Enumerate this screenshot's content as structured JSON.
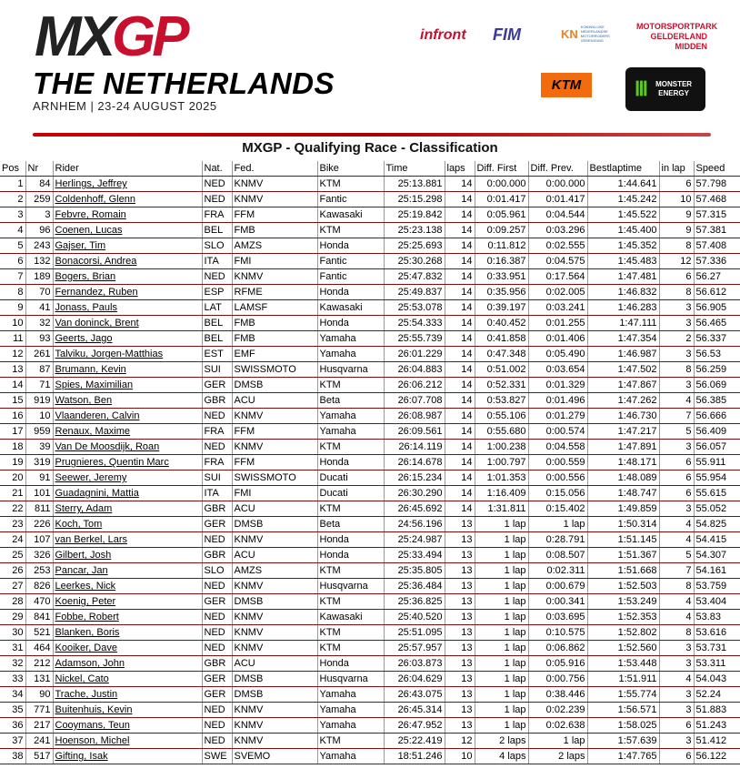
{
  "header": {
    "logo": "MXGP",
    "country": "THE NETHERLANDS",
    "dates": "ARNHEM | 23-24 AUGUST 2025",
    "sponsors": {
      "infront": "infront",
      "fim": "FIM",
      "knmv": "KN",
      "knmv_text": "KONINKLIJKE NEDERLANDSE MOTORRIJDERS VERENIGING",
      "park": "MOTORSPORTPARK GELDERLAND MIDDEN",
      "ktm": "KTM",
      "monster": "MONSTER ENERGY"
    }
  },
  "title": "MXGP - Qualifying Race - Classification",
  "columns": [
    "Pos",
    "Nr",
    "Rider",
    "Nat.",
    "Fed.",
    "Bike",
    "Time",
    "laps",
    "Diff. First",
    "Diff. Prev.",
    "Bestlaptime",
    "in lap",
    "Speed"
  ],
  "rows": [
    [
      "1",
      "84",
      "Herlings, Jeffrey",
      "NED",
      "KNMV",
      "KTM",
      "25:13.881",
      "14",
      "0:00.000",
      "0:00.000",
      "1:44.641",
      "6",
      "57.798"
    ],
    [
      "2",
      "259",
      "Coldenhoff, Glenn",
      "NED",
      "KNMV",
      "Fantic",
      "25:15.298",
      "14",
      "0:01.417",
      "0:01.417",
      "1:45.242",
      "10",
      "57.468"
    ],
    [
      "3",
      "3",
      "Febvre, Romain",
      "FRA",
      "FFM",
      "Kawasaki",
      "25:19.842",
      "14",
      "0:05.961",
      "0:04.544",
      "1:45.522",
      "9",
      "57.315"
    ],
    [
      "4",
      "96",
      "Coenen, Lucas",
      "BEL",
      "FMB",
      "KTM",
      "25:23.138",
      "14",
      "0:09.257",
      "0:03.296",
      "1:45.400",
      "9",
      "57.381"
    ],
    [
      "5",
      "243",
      "Gajser, Tim",
      "SLO",
      "AMZS",
      "Honda",
      "25:25.693",
      "14",
      "0:11.812",
      "0:02.555",
      "1:45.352",
      "8",
      "57.408"
    ],
    [
      "6",
      "132",
      "Bonacorsi, Andrea",
      "ITA",
      "FMI",
      "Fantic",
      "25:30.268",
      "14",
      "0:16.387",
      "0:04.575",
      "1:45.483",
      "12",
      "57.336"
    ],
    [
      "7",
      "189",
      "Bogers, Brian",
      "NED",
      "KNMV",
      "Fantic",
      "25:47.832",
      "14",
      "0:33.951",
      "0:17.564",
      "1:47.481",
      "6",
      "56.27"
    ],
    [
      "8",
      "70",
      "Fernandez, Ruben",
      "ESP",
      "RFME",
      "Honda",
      "25:49.837",
      "14",
      "0:35.956",
      "0:02.005",
      "1:46.832",
      "8",
      "56.612"
    ],
    [
      "9",
      "41",
      "Jonass, Pauls",
      "LAT",
      "LAMSF",
      "Kawasaki",
      "25:53.078",
      "14",
      "0:39.197",
      "0:03.241",
      "1:46.283",
      "3",
      "56.905"
    ],
    [
      "10",
      "32",
      "Van doninck, Brent",
      "BEL",
      "FMB",
      "Honda",
      "25:54.333",
      "14",
      "0:40.452",
      "0:01.255",
      "1:47.111",
      "3",
      "56.465"
    ],
    [
      "11",
      "93",
      "Geerts, Jago",
      "BEL",
      "FMB",
      "Yamaha",
      "25:55.739",
      "14",
      "0:41.858",
      "0:01.406",
      "1:47.354",
      "2",
      "56.337"
    ],
    [
      "12",
      "261",
      "Talviku, Jorgen-Matthias",
      "EST",
      "EMF",
      "Yamaha",
      "26:01.229",
      "14",
      "0:47.348",
      "0:05.490",
      "1:46.987",
      "3",
      "56.53"
    ],
    [
      "13",
      "87",
      "Brumann, Kevin",
      "SUI",
      "SWISSMOTO",
      "Husqvarna",
      "26:04.883",
      "14",
      "0:51.002",
      "0:03.654",
      "1:47.502",
      "8",
      "56.259"
    ],
    [
      "14",
      "71",
      "Spies, Maximilian",
      "GER",
      "DMSB",
      "KTM",
      "26:06.212",
      "14",
      "0:52.331",
      "0:01.329",
      "1:47.867",
      "3",
      "56.069"
    ],
    [
      "15",
      "919",
      "Watson, Ben",
      "GBR",
      "ACU",
      "Beta",
      "26:07.708",
      "14",
      "0:53.827",
      "0:01.496",
      "1:47.262",
      "4",
      "56.385"
    ],
    [
      "16",
      "10",
      "Vlaanderen, Calvin",
      "NED",
      "KNMV",
      "Yamaha",
      "26:08.987",
      "14",
      "0:55.106",
      "0:01.279",
      "1:46.730",
      "7",
      "56.666"
    ],
    [
      "17",
      "959",
      "Renaux, Maxime",
      "FRA",
      "FFM",
      "Yamaha",
      "26:09.561",
      "14",
      "0:55.680",
      "0:00.574",
      "1:47.217",
      "5",
      "56.409"
    ],
    [
      "18",
      "39",
      "Van De Moosdijk, Roan",
      "NED",
      "KNMV",
      "KTM",
      "26:14.119",
      "14",
      "1:00.238",
      "0:04.558",
      "1:47.891",
      "3",
      "56.057"
    ],
    [
      "19",
      "319",
      "Prugnieres, Quentin Marc",
      "FRA",
      "FFM",
      "Honda",
      "26:14.678",
      "14",
      "1:00.797",
      "0:00.559",
      "1:48.171",
      "6",
      "55.911"
    ],
    [
      "20",
      "91",
      "Seewer, Jeremy",
      "SUI",
      "SWISSMOTO",
      "Ducati",
      "26:15.234",
      "14",
      "1:01.353",
      "0:00.556",
      "1:48.089",
      "6",
      "55.954"
    ],
    [
      "21",
      "101",
      "Guadagnini, Mattia",
      "ITA",
      "FMI",
      "Ducati",
      "26:30.290",
      "14",
      "1:16.409",
      "0:15.056",
      "1:48.747",
      "6",
      "55.615"
    ],
    [
      "22",
      "811",
      "Sterry, Adam",
      "GBR",
      "ACU",
      "KTM",
      "26:45.692",
      "14",
      "1:31.811",
      "0:15.402",
      "1:49.859",
      "3",
      "55.052"
    ],
    [
      "23",
      "226",
      "Koch, Tom",
      "GER",
      "DMSB",
      "Beta",
      "24:56.196",
      "13",
      "1 lap",
      "1 lap",
      "1:50.314",
      "4",
      "54.825"
    ],
    [
      "24",
      "107",
      "van Berkel, Lars",
      "NED",
      "KNMV",
      "Honda",
      "25:24.987",
      "13",
      "1 lap",
      "0:28.791",
      "1:51.145",
      "4",
      "54.415"
    ],
    [
      "25",
      "326",
      "Gilbert, Josh",
      "GBR",
      "ACU",
      "Honda",
      "25:33.494",
      "13",
      "1 lap",
      "0:08.507",
      "1:51.367",
      "5",
      "54.307"
    ],
    [
      "26",
      "253",
      "Pancar, Jan",
      "SLO",
      "AMZS",
      "KTM",
      "25:35.805",
      "13",
      "1 lap",
      "0:02.311",
      "1:51.668",
      "7",
      "54.161"
    ],
    [
      "27",
      "826",
      "Leerkes, Nick",
      "NED",
      "KNMV",
      "Husqvarna",
      "25:36.484",
      "13",
      "1 lap",
      "0:00.679",
      "1:52.503",
      "8",
      "53.759"
    ],
    [
      "28",
      "470",
      "Koenig, Peter",
      "GER",
      "DMSB",
      "KTM",
      "25:36.825",
      "13",
      "1 lap",
      "0:00.341",
      "1:53.249",
      "4",
      "53.404"
    ],
    [
      "29",
      "841",
      "Fobbe, Robert",
      "NED",
      "KNMV",
      "Kawasaki",
      "25:40.520",
      "13",
      "1 lap",
      "0:03.695",
      "1:52.353",
      "4",
      "53.83"
    ],
    [
      "30",
      "521",
      "Blanken, Boris",
      "NED",
      "KNMV",
      "KTM",
      "25:51.095",
      "13",
      "1 lap",
      "0:10.575",
      "1:52.802",
      "8",
      "53.616"
    ],
    [
      "31",
      "464",
      "Kooiker, Dave",
      "NED",
      "KNMV",
      "KTM",
      "25:57.957",
      "13",
      "1 lap",
      "0:06.862",
      "1:52.560",
      "3",
      "53.731"
    ],
    [
      "32",
      "212",
      "Adamson, John",
      "GBR",
      "ACU",
      "Honda",
      "26:03.873",
      "13",
      "1 lap",
      "0:05.916",
      "1:53.448",
      "3",
      "53.311"
    ],
    [
      "33",
      "131",
      "Nickel, Cato",
      "GER",
      "DMSB",
      "Husqvarna",
      "26:04.629",
      "13",
      "1 lap",
      "0:00.756",
      "1:51.911",
      "4",
      "54.043"
    ],
    [
      "34",
      "90",
      "Trache, Justin",
      "GER",
      "DMSB",
      "Yamaha",
      "26:43.075",
      "13",
      "1 lap",
      "0:38.446",
      "1:55.774",
      "3",
      "52.24"
    ],
    [
      "35",
      "771",
      "Buitenhuis, Kevin",
      "NED",
      "KNMV",
      "Yamaha",
      "26:45.314",
      "13",
      "1 lap",
      "0:02.239",
      "1:56.571",
      "3",
      "51.883"
    ],
    [
      "36",
      "217",
      "Cooymans, Teun",
      "NED",
      "KNMV",
      "Yamaha",
      "26:47.952",
      "13",
      "1 lap",
      "0:02.638",
      "1:58.025",
      "6",
      "51.243"
    ],
    [
      "37",
      "241",
      "Hoenson, Michel",
      "NED",
      "KNMV",
      "KTM",
      "25:22.419",
      "12",
      "2 laps",
      "1 lap",
      "1:57.639",
      "3",
      "51.412"
    ],
    [
      "38",
      "517",
      "Gifting, Isak",
      "SWE",
      "SVEMO",
      "Yamaha",
      "18:51.246",
      "10",
      "4 laps",
      "2 laps",
      "1:47.765",
      "6",
      "56.122"
    ]
  ]
}
